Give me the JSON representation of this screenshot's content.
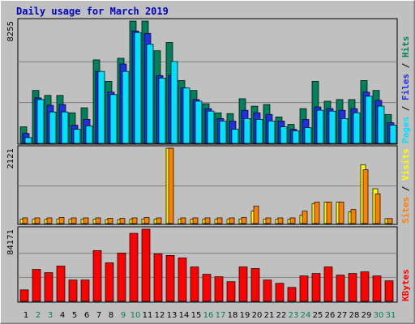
{
  "chart_data": [
    {
      "type": "bar",
      "title": "Daily usage for March 2019",
      "ylim": [
        0,
        8255
      ],
      "yticks": [
        8255
      ],
      "series": [
        {
          "name": "Pages",
          "color": "#00e0ff",
          "values": [
            391,
            2957,
            2120,
            2120,
            949,
            1172,
            4855,
            3292,
            4855,
            7477,
            6696,
            4408,
            5524,
            3739,
            2846,
            2176,
            1507,
            949,
            1674,
            1618,
            1507,
            1116,
            837,
            1060,
            2232,
            2176,
            1674,
            2064,
            3180,
            2511,
            1228
          ]
        },
        {
          "name": "Files",
          "color": "#2030e0",
          "values": [
            670,
            3069,
            2567,
            2623,
            1228,
            1618,
            4855,
            3460,
            5357,
            7589,
            7421,
            4576,
            4576,
            3739,
            2957,
            2344,
            1674,
            1507,
            2232,
            2064,
            1953,
            1507,
            949,
            1618,
            2455,
            2344,
            2232,
            2344,
            3460,
            2902,
            1395
          ]
        },
        {
          "name": "Hits",
          "color": "#00805c",
          "values": [
            1116,
            3571,
            3236,
            3236,
            2064,
            2400,
            5636,
            4185,
            5747,
            8255,
            8255,
            6250,
            6808,
            4241,
            3571,
            2678,
            2064,
            2009,
            3013,
            2511,
            2623,
            1786,
            1283,
            2344,
            4185,
            2846,
            2957,
            2957,
            4241,
            3571,
            1953
          ]
        }
      ]
    },
    {
      "type": "bar",
      "ylim": [
        0,
        2121
      ],
      "yticks": [
        2121
      ],
      "series": [
        {
          "name": "Sites",
          "color": "#ff8000",
          "values": [
            160,
            160,
            160,
            170,
            160,
            160,
            160,
            150,
            150,
            160,
            170,
            160,
            2121,
            160,
            160,
            160,
            160,
            160,
            170,
            490,
            160,
            160,
            160,
            350,
            606,
            606,
            606,
            396,
            1515,
            839,
            140
          ]
        },
        {
          "name": "Visits",
          "color": "#ffff00",
          "values": [
            120,
            120,
            120,
            130,
            120,
            120,
            120,
            110,
            110,
            120,
            130,
            120,
            2121,
            120,
            120,
            120,
            120,
            120,
            130,
            350,
            120,
            120,
            120,
            233,
            560,
            606,
            606,
            326,
            1655,
            979,
            140
          ]
        }
      ]
    },
    {
      "type": "bar",
      "ylim": [
        0,
        84171
      ],
      "yticks": [
        84171
      ],
      "categories": [
        "1",
        "2",
        "3",
        "4",
        "5",
        "6",
        "7",
        "8",
        "9",
        "10",
        "11",
        "12",
        "13",
        "14",
        "15",
        "16",
        "17",
        "18",
        "19",
        "20",
        "21",
        "22",
        "23",
        "24",
        "25",
        "26",
        "27",
        "28",
        "29",
        "30",
        "31"
      ],
      "category_colors": [
        "#000000",
        "#00805c",
        "#00805c",
        "#000000",
        "#000000",
        "#000000",
        "#000000",
        "#000000",
        "#00805c",
        "#00805c",
        "#000000",
        "#000000",
        "#000000",
        "#000000",
        "#000000",
        "#00805c",
        "#00805c",
        "#000000",
        "#000000",
        "#000000",
        "#000000",
        "#000000",
        "#00805c",
        "#00805c",
        "#000000",
        "#000000",
        "#000000",
        "#000000",
        "#000000",
        "#00805c",
        "#00805c"
      ],
      "series": [
        {
          "name": "KBytes",
          "color": "#ff0000",
          "values": [
            13390,
            37303,
            33476,
            41128,
            24868,
            24868,
            59302,
            44955,
            56433,
            79389,
            84171,
            55476,
            53564,
            50694,
            40171,
            31563,
            28694,
            22955,
            40171,
            38260,
            24868,
            21042,
            16260,
            29651,
            32520,
            40171,
            30607,
            32520,
            34433,
            29651,
            23911
          ]
        }
      ]
    }
  ]
}
